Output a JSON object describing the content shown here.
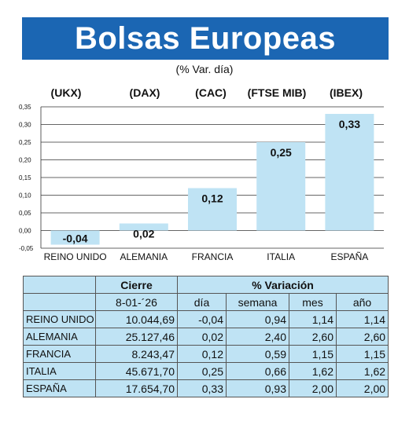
{
  "header": {
    "title": "Bolsas Europeas",
    "subtitle": "(% Var. día)"
  },
  "tickers": [
    "(UKX)",
    "(DAX)",
    "(CAC)",
    "(FTSE MIB)",
    "(IBEX)"
  ],
  "chart_data": {
    "type": "bar",
    "categories": [
      "REINO UNIDO",
      "ALEMANIA",
      "FRANCIA",
      "ITALIA",
      "ESPAÑA"
    ],
    "values": [
      -0.04,
      0.02,
      0.12,
      0.25,
      0.33
    ],
    "value_labels": [
      "-0,04",
      "0,02",
      "0,12",
      "0,25",
      "0,33"
    ],
    "y_ticks": [
      "-0,05",
      "0,00",
      "0,05",
      "0,10",
      "0,15",
      "0,20",
      "0,25",
      "0,30",
      "0,35"
    ],
    "ylim": [
      -0.05,
      0.35
    ],
    "bar_color": "#bfe3f4",
    "grid": true
  },
  "table": {
    "group_headers": {
      "close": "Cierre",
      "variation": "% Variación"
    },
    "date": "8-01-´26",
    "columns": [
      "día",
      "semana",
      "mes",
      "año"
    ],
    "rows": [
      {
        "name": "REINO UNIDO",
        "close": "10.044,69",
        "day": "-0,04",
        "week": "0,94",
        "month": "1,14",
        "year": "1,14"
      },
      {
        "name": "ALEMANIA",
        "close": "25.127,46",
        "day": "0,02",
        "week": "2,40",
        "month": "2,60",
        "year": "2,60"
      },
      {
        "name": "FRANCIA",
        "close": "8.243,47",
        "day": "0,12",
        "week": "0,59",
        "month": "1,15",
        "year": "1,15"
      },
      {
        "name": "ITALIA",
        "close": "45.671,70",
        "day": "0,25",
        "week": "0,66",
        "month": "1,62",
        "year": "1,62"
      },
      {
        "name": "ESPAÑA",
        "close": "17.654,70",
        "day": "0,33",
        "week": "0,93",
        "month": "2,00",
        "year": "2,00"
      }
    ]
  },
  "colors": {
    "banner": "#1b66b3",
    "bar_fill": "#bfe3f4",
    "table_fill": "#bfe3f4"
  }
}
